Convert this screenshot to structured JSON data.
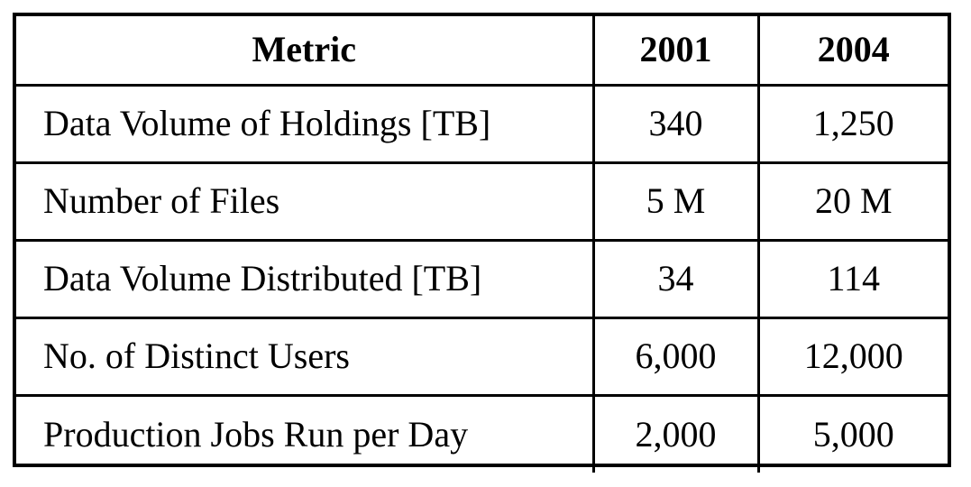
{
  "table": {
    "headers": [
      "Metric",
      "2001",
      "2004"
    ],
    "rows": [
      {
        "metric": "Data Volume of Holdings [TB]",
        "y2001": "340",
        "y2004": "1,250"
      },
      {
        "metric": "Number of Files",
        "y2001": "5 M",
        "y2004": "20 M"
      },
      {
        "metric": "Data Volume Distributed [TB]",
        "y2001": "34",
        "y2004": "114"
      },
      {
        "metric": "No. of Distinct Users",
        "y2001": "6,000",
        "y2004": "12,000"
      },
      {
        "metric": "Production Jobs Run per Day",
        "y2001": "2,000",
        "y2004": "5,000"
      }
    ]
  }
}
